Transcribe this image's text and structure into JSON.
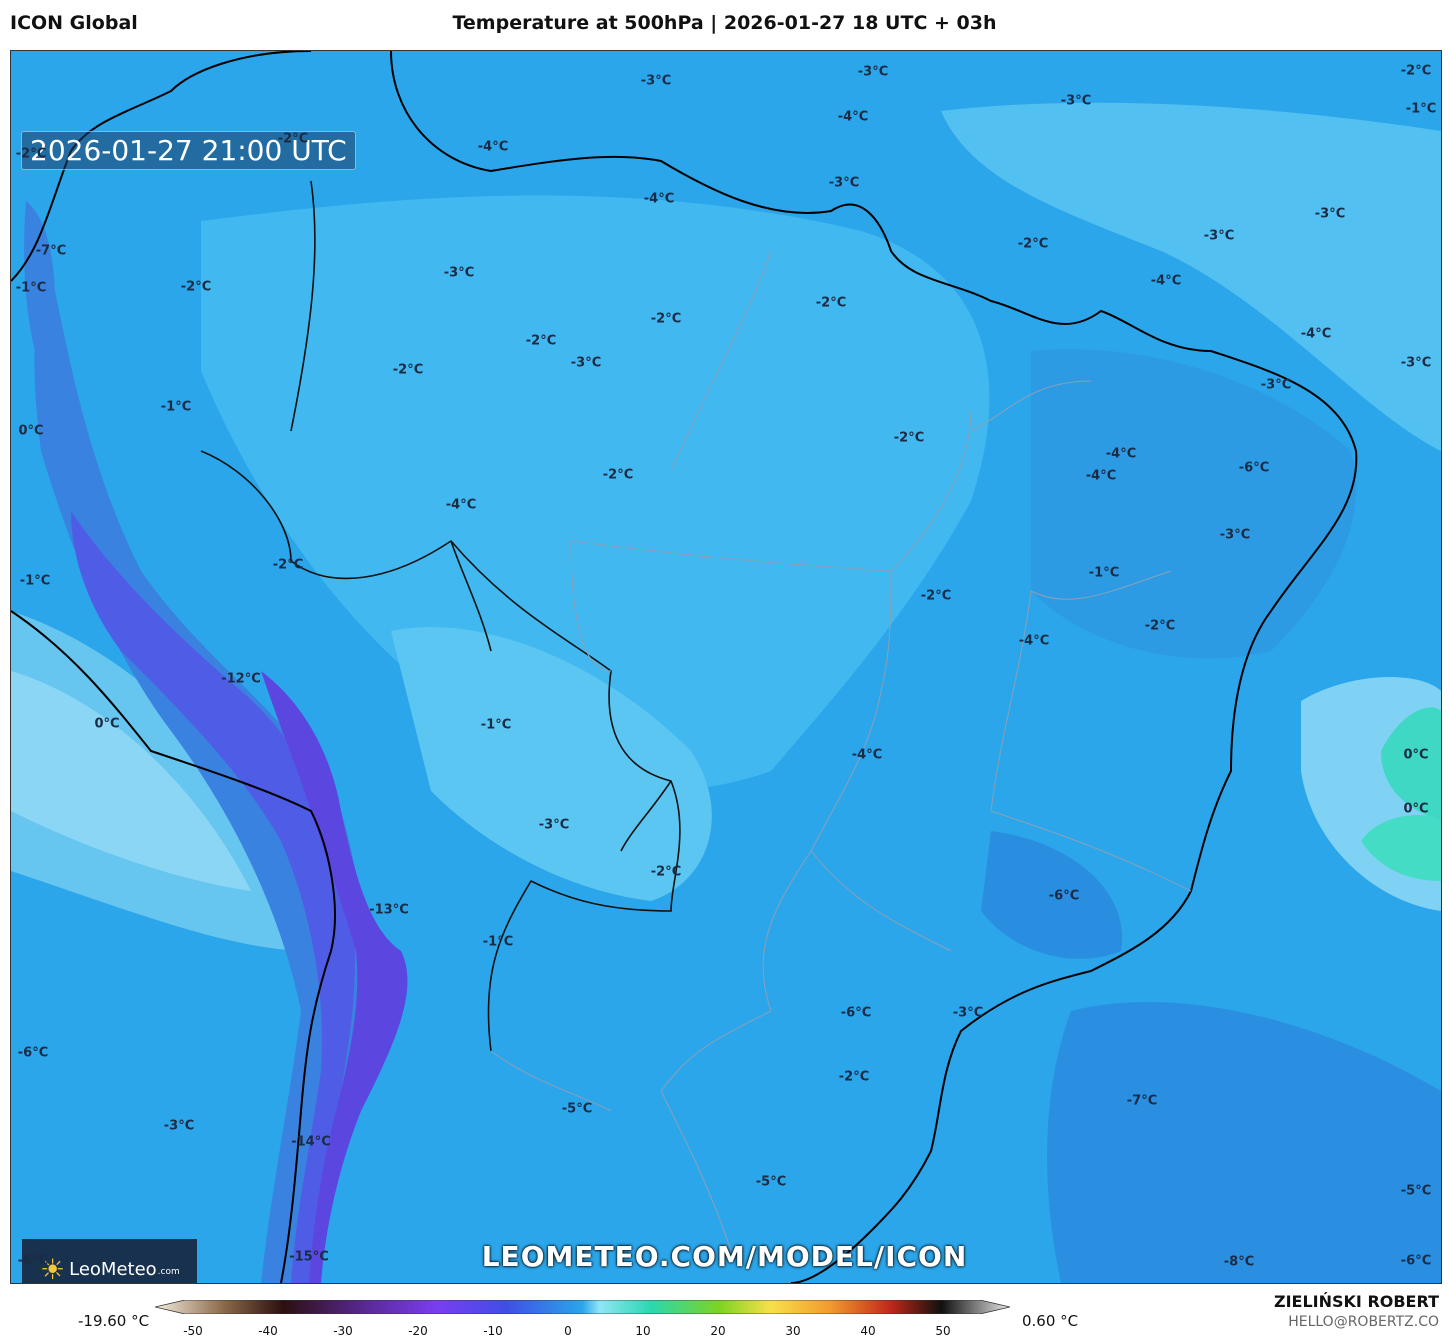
{
  "header": {
    "model": "ICON Global",
    "title": "Temperature at 500hPa | 2026-01-27 18 UTC + 03h"
  },
  "map": {
    "timestamp": "2026-01-27 21:00 UTC",
    "watermark_url": "LEOMETEO.COM/MODEL/ICON",
    "logo_text": "LeoMeteo",
    "logo_domain": ".com",
    "temperature_labels": [
      "-3°C",
      "-3°C",
      "-2°C",
      "-1°C",
      "-2°C",
      "-4°C",
      "-4°C",
      "-3°C",
      "-3°C",
      "-4°C",
      "-2°C",
      "-7°C",
      "-1°C",
      "-2°C",
      "-3°C",
      "-2°C",
      "-2°C",
      "-2°C",
      "-2°C",
      "-3°C",
      "-3°C",
      "-4°C",
      "-4°C",
      "-3°C",
      "-3°C",
      "-1°C",
      "0°C",
      "-2°C",
      "-4°C",
      "-4°C",
      "-6°C",
      "-2°C",
      "-3°C",
      "-1°C",
      "-2°C",
      "-3°C",
      "-2°C",
      "-4°C",
      "-4°C",
      "-2°C",
      "-12°C",
      "0°C",
      "-1°C",
      "-1°C",
      "-4°C",
      "0°C",
      "0°C",
      "-3°C",
      "-2°C",
      "-6°C",
      "-13°C",
      "-1°C",
      "-6°C",
      "-3°C",
      "-6°C",
      "-2°C",
      "-5°C",
      "-7°C",
      "-3°C",
      "-14°C",
      "-5°C",
      "-5°C",
      "-6°C",
      "-15°C",
      "-8°C",
      "-6°C",
      "-2°C"
    ]
  },
  "colorbar": {
    "min_label": "-19.60 °C",
    "max_label": "0.60 °C",
    "ticks": [
      "-50",
      "-40",
      "-30",
      "-20",
      "-10",
      "0",
      "10",
      "20",
      "30",
      "40",
      "50"
    ]
  },
  "credits": {
    "author": "ZIELIŃSKI ROBERT",
    "email": "HELLO@ROBERTZ.CO"
  }
}
